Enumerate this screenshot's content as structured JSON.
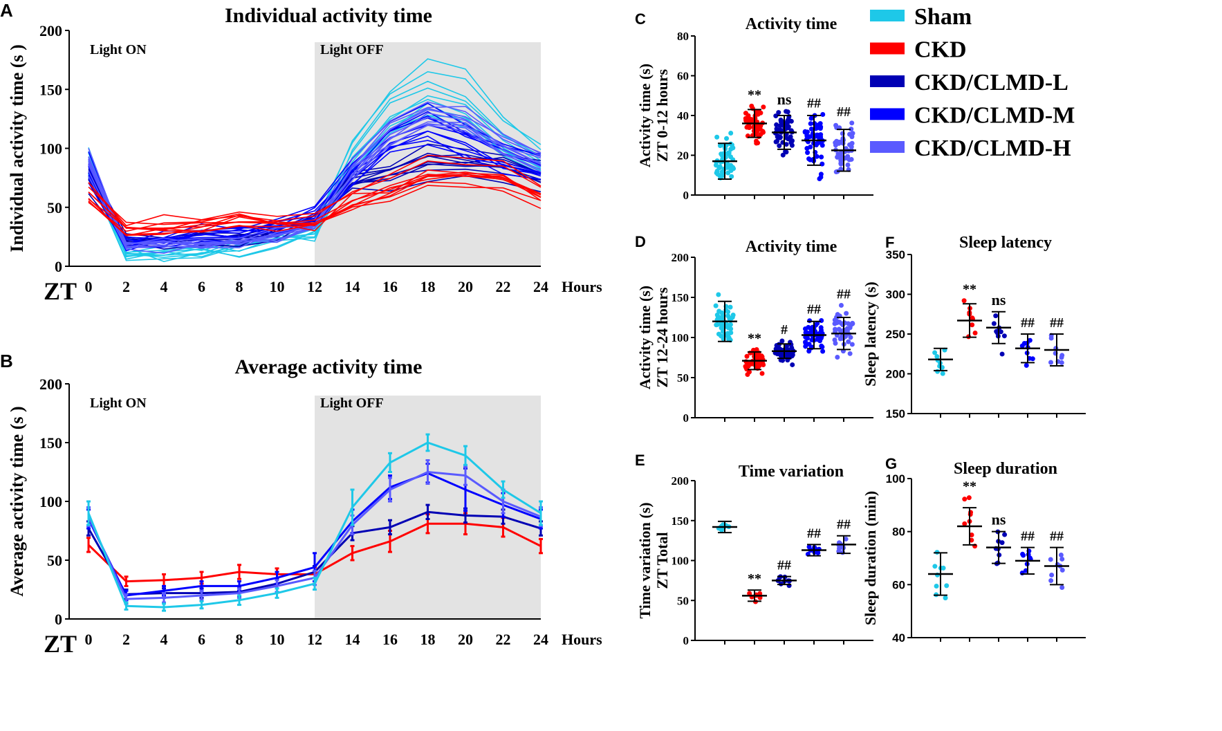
{
  "colors": {
    "Sham": "#1ec8e8",
    "CKD": "#ff0000",
    "CKD/CLMD-L": "#0000b4",
    "CKD/CLMD-M": "#0000ff",
    "CKD/CLMD-H": "#5a5aff",
    "dark_period": "#e3e3e3"
  },
  "legend": [
    "Sham",
    "CKD",
    "CKD/CLMD-L",
    "CKD/CLMD-M",
    "CKD/CLMD-H"
  ],
  "chart_data": [
    {
      "panel": "A",
      "type": "line",
      "title": "Individual activity time",
      "ylabel": "Individual activity time (s )",
      "xlabel_left": "ZT",
      "xlabel_right": "Hours",
      "ylim": [
        0,
        200
      ],
      "yticks": [
        0,
        50,
        100,
        150,
        200
      ],
      "x": [
        0,
        2,
        4,
        6,
        8,
        10,
        12,
        14,
        16,
        18,
        20,
        22,
        24
      ],
      "shaded": {
        "from": 12,
        "to": 24,
        "label": "Light OFF"
      },
      "unshaded_label": "Light ON",
      "series": [
        {
          "name": "Sham",
          "values": [
            90,
            11,
            10,
            12,
            16,
            22,
            30,
            95,
            133,
            150,
            139,
            110,
            90
          ]
        },
        {
          "name": "CKD",
          "values": [
            63,
            32,
            33,
            35,
            40,
            38,
            38,
            56,
            66,
            81,
            81,
            78,
            62
          ]
        },
        {
          "name": "CKD/CLMD-L",
          "values": [
            77,
            21,
            22,
            22,
            23,
            30,
            40,
            73,
            78,
            91,
            88,
            87,
            77
          ]
        },
        {
          "name": "CKD/CLMD-M",
          "values": [
            85,
            20,
            24,
            28,
            28,
            35,
            44,
            83,
            112,
            124,
            110,
            97,
            85
          ]
        },
        {
          "name": "CKD/CLMD-H",
          "values": [
            87,
            17,
            18,
            20,
            22,
            28,
            35,
            80,
            110,
            125,
            122,
            100,
            87
          ]
        }
      ]
    },
    {
      "panel": "B",
      "type": "line",
      "title": "Average activity time",
      "ylabel": "Average activity time (s )",
      "xlabel_left": "ZT",
      "xlabel_right": "Hours",
      "ylim": [
        0,
        200
      ],
      "yticks": [
        0,
        50,
        100,
        150,
        200
      ],
      "x": [
        0,
        2,
        4,
        6,
        8,
        10,
        12,
        14,
        16,
        18,
        20,
        22,
        24
      ],
      "shaded": {
        "from": 12,
        "to": 24,
        "label": "Light OFF"
      },
      "unshaded_label": "Light ON",
      "series": [
        {
          "name": "Sham",
          "values": [
            90,
            11,
            10,
            12,
            16,
            22,
            30,
            95,
            133,
            150,
            139,
            110,
            90
          ],
          "error": [
            10,
            3,
            3,
            3,
            4,
            4,
            5,
            15,
            8,
            7,
            8,
            7,
            10
          ]
        },
        {
          "name": "CKD",
          "values": [
            63,
            32,
            33,
            35,
            40,
            38,
            38,
            56,
            66,
            81,
            81,
            78,
            62
          ],
          "error": [
            6,
            4,
            5,
            5,
            6,
            5,
            6,
            6,
            9,
            8,
            9,
            8,
            6
          ]
        },
        {
          "name": "CKD/CLMD-L",
          "values": [
            77,
            21,
            22,
            22,
            23,
            30,
            40,
            73,
            78,
            91,
            88,
            87,
            77
          ],
          "error": [
            6,
            4,
            4,
            4,
            4,
            4,
            5,
            6,
            6,
            6,
            6,
            6,
            6
          ]
        },
        {
          "name": "CKD/CLMD-M",
          "values": [
            85,
            20,
            24,
            28,
            28,
            35,
            44,
            83,
            112,
            124,
            110,
            97,
            85
          ],
          "error": [
            8,
            4,
            4,
            4,
            4,
            5,
            12,
            10,
            10,
            8,
            18,
            10,
            8
          ]
        },
        {
          "name": "CKD/CLMD-H",
          "values": [
            87,
            17,
            18,
            20,
            22,
            28,
            35,
            80,
            110,
            125,
            122,
            100,
            87
          ],
          "error": [
            8,
            4,
            4,
            4,
            4,
            5,
            6,
            8,
            10,
            10,
            8,
            10,
            8
          ]
        }
      ]
    },
    {
      "panel": "C",
      "type": "scatter",
      "title": "Activity time",
      "ylabel": [
        "Activity time (s)",
        "ZT 0-12 hours"
      ],
      "ylim": [
        0,
        80
      ],
      "yticks": [
        0,
        20,
        40,
        60,
        80
      ],
      "groups": [
        "Sham",
        "CKD",
        "CKD/CLMD-L",
        "CKD/CLMD-M",
        "CKD/CLMD-H"
      ],
      "n": 50,
      "mean": [
        17,
        36,
        31.5,
        27.5,
        22.5
      ],
      "sd": [
        9,
        7,
        8.5,
        12.5,
        10.5
      ],
      "annotations": [
        "",
        "**",
        "ns",
        "##",
        "##"
      ]
    },
    {
      "panel": "D",
      "type": "scatter",
      "title": "Activity time",
      "ylabel": [
        "Activity time (s)",
        "ZT 12-24 hours"
      ],
      "ylim": [
        0,
        200
      ],
      "yticks": [
        0,
        50,
        100,
        150,
        200
      ],
      "groups": [
        "Sham",
        "CKD",
        "CKD/CLMD-L",
        "CKD/CLMD-M",
        "CKD/CLMD-H"
      ],
      "n": 50,
      "mean": [
        120,
        71,
        83,
        103,
        105
      ],
      "sd": [
        25,
        11,
        9,
        17,
        20
      ],
      "annotations": [
        "",
        "**",
        "#",
        "##",
        "##"
      ]
    },
    {
      "panel": "E",
      "type": "scatter",
      "title": "Time variation",
      "ylabel": [
        "Time variation (s)",
        "ZT Total"
      ],
      "ylim": [
        0,
        200
      ],
      "yticks": [
        0,
        50,
        100,
        150,
        200
      ],
      "groups": [
        "Sham",
        "CKD",
        "CKD/CLMD-L",
        "CKD/CLMD-M",
        "CKD/CLMD-H"
      ],
      "n": 9,
      "mean": [
        142,
        56,
        75,
        113,
        120
      ],
      "sd": [
        7,
        7,
        5,
        7,
        11
      ],
      "annotations": [
        "",
        "**",
        "##",
        "##",
        "##"
      ]
    },
    {
      "panel": "F",
      "type": "scatter",
      "title": "Sleep latency",
      "ylabel": [
        "Sleep latency (s)"
      ],
      "ylim": [
        150,
        350
      ],
      "yticks": [
        150,
        200,
        250,
        300,
        350
      ],
      "groups": [
        "Sham",
        "CKD",
        "CKD/CLMD-L",
        "CKD/CLMD-M",
        "CKD/CLMD-H"
      ],
      "n": 9,
      "mean": [
        218,
        267,
        258,
        232,
        230
      ],
      "sd": [
        14,
        21,
        20,
        18,
        20
      ],
      "annotations": [
        "",
        "**",
        "ns",
        "##",
        "##"
      ]
    },
    {
      "panel": "G",
      "type": "scatter",
      "title": "Sleep duration",
      "ylabel": [
        "Sleep duration (min)"
      ],
      "ylim": [
        40,
        100
      ],
      "yticks": [
        40,
        60,
        80,
        100
      ],
      "groups": [
        "Sham",
        "CKD",
        "CKD/CLMD-L",
        "CKD/CLMD-M",
        "CKD/CLMD-H"
      ],
      "n": 9,
      "mean": [
        64,
        82,
        74,
        69,
        67
      ],
      "sd": [
        8,
        7,
        6,
        5,
        7
      ],
      "annotations": [
        "",
        "**",
        "ns",
        "##",
        "##"
      ]
    }
  ]
}
